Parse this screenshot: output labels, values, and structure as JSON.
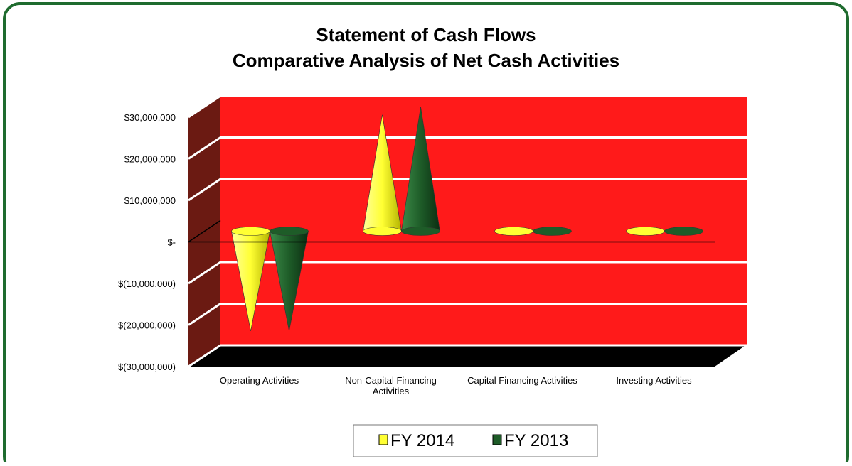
{
  "chart_data": {
    "type": "cone",
    "title": "Statement of Cash Flows",
    "subtitle": "Comparative Analysis of Net Cash Activities",
    "categories": [
      "Operating Activities",
      "Non-Capital Financing Activities",
      "Capital Financing Activities",
      "Investing Activities"
    ],
    "series": [
      {
        "name": "FY 2014",
        "color": "#ffff33",
        "values": [
          -24000000,
          28000000,
          500000,
          500000
        ]
      },
      {
        "name": "FY 2013",
        "color": "#1e5c28",
        "values": [
          -24000000,
          30000000,
          500000,
          500000
        ]
      }
    ],
    "ylim": [
      -30000000,
      30000000
    ],
    "yticks": [
      {
        "value": 30000000,
        "label": "$30,000,000"
      },
      {
        "value": 20000000,
        "label": "$20,000,000"
      },
      {
        "value": 10000000,
        "label": "$10,000,000"
      },
      {
        "value": 0,
        "label": "$-"
      },
      {
        "value": -10000000,
        "label": "$(10,000,000)"
      },
      {
        "value": -20000000,
        "label": "$(20,000,000)"
      },
      {
        "value": -30000000,
        "label": "$(30,000,000)"
      }
    ],
    "grid": true,
    "legend": "bottom"
  }
}
